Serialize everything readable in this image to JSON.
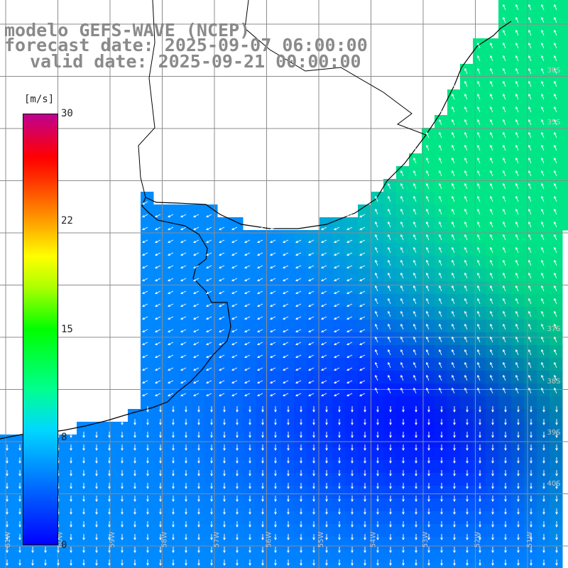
{
  "title": {
    "line1": "modelo GEFS-WAVE (NCEP)",
    "line2": "forecast date: 2025-09-07 06:00:00",
    "line3": "valid date: 2025-09-21 00:00:00"
  },
  "colorbar": {
    "unit": "[m/s]",
    "ticks": [
      {
        "label": "30",
        "value": 30
      },
      {
        "label": "22",
        "value": 22
      },
      {
        "label": "15",
        "value": 15
      },
      {
        "label": "8",
        "value": 8
      },
      {
        "label": "0",
        "value": 0
      }
    ],
    "colors": [
      "#0000ff",
      "#00d8ff",
      "#00ff00",
      "#ffff00",
      "#ff0000",
      "#c00090"
    ]
  },
  "lat_labels": [
    "30S",
    "35S",
    "37S",
    "38S",
    "39S",
    "40S"
  ],
  "lon_labels": [
    "61W",
    "60W",
    "59W",
    "58W",
    "57W",
    "56W",
    "55W",
    "54W",
    "53W",
    "52W",
    "51W"
  ],
  "colors": {
    "land": "#ffffff",
    "coast": "#000000",
    "grid": "#8c8c8c",
    "arrow": "#ffffff"
  }
}
